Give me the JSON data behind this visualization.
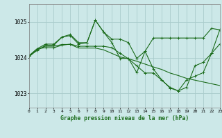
{
  "title": "Graphe pression niveau de la mer (hPa)",
  "background_color": "#cce8e8",
  "grid_color": "#aacccc",
  "line_color": "#1a6b1a",
  "marker_color": "#1a6b1a",
  "xlim": [
    0,
    23
  ],
  "ylim": [
    1022.6,
    1025.5
  ],
  "yticks": [
    1023,
    1024,
    1025
  ],
  "xticks": [
    0,
    1,
    2,
    3,
    4,
    5,
    6,
    7,
    8,
    9,
    10,
    11,
    12,
    13,
    14,
    15,
    16,
    17,
    18,
    19,
    20,
    21,
    22,
    23
  ],
  "series1_x": [
    0,
    1,
    2,
    3,
    4,
    5,
    6,
    7,
    8,
    9,
    10,
    11,
    12,
    13,
    14,
    15,
    16,
    17,
    18,
    19,
    20,
    21,
    22,
    23
  ],
  "series1_y": [
    1024.05,
    1024.2,
    1024.35,
    1024.35,
    1024.58,
    1024.62,
    1024.38,
    1024.42,
    1025.05,
    1024.72,
    1024.52,
    1024.52,
    1024.42,
    1023.98,
    1024.18,
    1024.55,
    1024.55,
    1024.55,
    1024.55,
    1024.55,
    1024.55,
    1024.55,
    1024.82,
    1024.78
  ],
  "series2_x": [
    0,
    1,
    2,
    3,
    4,
    5,
    6,
    7,
    8,
    9,
    10,
    11,
    12,
    13,
    14,
    15,
    16,
    17,
    18,
    19,
    20,
    21,
    22,
    23
  ],
  "series2_y": [
    1024.02,
    1024.22,
    1024.32,
    1024.32,
    1024.37,
    1024.37,
    1024.27,
    1024.27,
    1024.27,
    1024.22,
    1024.12,
    1024.02,
    1023.97,
    1023.9,
    1023.82,
    1023.74,
    1023.67,
    1023.57,
    1023.5,
    1023.42,
    1023.37,
    1023.32,
    1023.27,
    1023.22
  ],
  "series3_x": [
    0,
    1,
    2,
    3,
    4,
    5,
    6,
    7,
    8,
    9,
    10,
    11,
    12,
    13,
    14,
    15,
    16,
    17,
    18,
    19,
    20,
    21,
    22,
    23
  ],
  "series3_y": [
    1024.05,
    1024.25,
    1024.28,
    1024.28,
    1024.35,
    1024.38,
    1024.32,
    1024.32,
    1024.32,
    1024.32,
    1024.28,
    1024.12,
    1023.97,
    1023.77,
    1023.57,
    1023.57,
    1023.37,
    1023.17,
    1023.07,
    1023.17,
    1023.77,
    1023.87,
    1024.12,
    1024.38
  ],
  "series4_x": [
    0,
    1,
    2,
    3,
    4,
    5,
    6,
    7,
    8,
    9,
    10,
    11,
    12,
    13,
    14,
    15,
    16,
    17,
    18,
    19,
    20,
    21,
    22,
    23
  ],
  "series4_y": [
    1024.05,
    1024.25,
    1024.38,
    1024.38,
    1024.58,
    1024.65,
    1024.42,
    1024.42,
    1025.05,
    1024.72,
    1024.42,
    1023.98,
    1023.98,
    1023.58,
    1024.18,
    1023.68,
    1023.38,
    1023.15,
    1023.07,
    1023.38,
    1023.48,
    1023.58,
    1024.12,
    1024.78
  ]
}
